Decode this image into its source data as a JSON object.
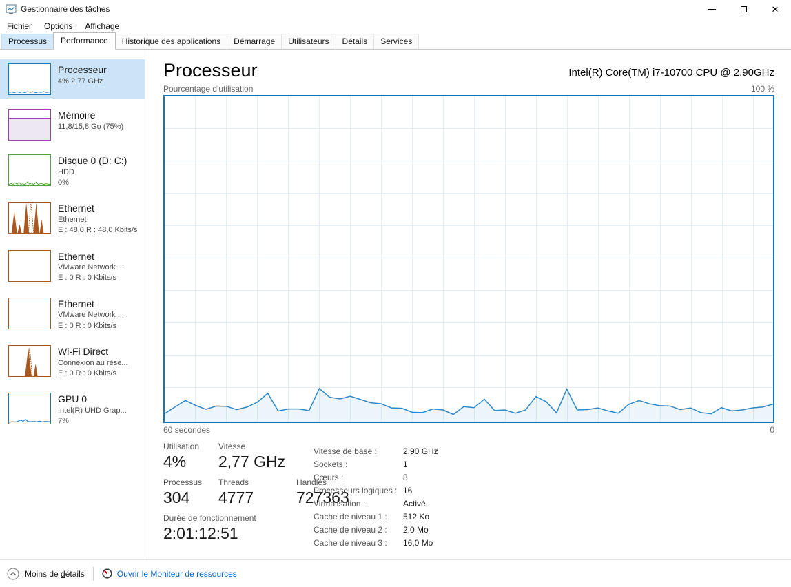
{
  "window": {
    "title": "Gestionnaire des tâches"
  },
  "menu": {
    "items": [
      {
        "label": "Fichier"
      },
      {
        "label": "Options"
      },
      {
        "label": "Affichage"
      }
    ]
  },
  "tabs": [
    {
      "label": "Processus"
    },
    {
      "label": "Performance"
    },
    {
      "label": "Historique des applications"
    },
    {
      "label": "Démarrage"
    },
    {
      "label": "Utilisateurs"
    },
    {
      "label": "Détails"
    },
    {
      "label": "Services"
    }
  ],
  "sidebar": {
    "items": [
      {
        "name": "Processeur",
        "line2": "4% 2,77 GHz",
        "line3": ""
      },
      {
        "name": "Mémoire",
        "line2": "11,8/15,8 Go (75%)",
        "line3": ""
      },
      {
        "name": "Disque 0 (D: C:)",
        "line2": "HDD",
        "line3": "0%"
      },
      {
        "name": "Ethernet",
        "line2": "Ethernet",
        "line3": "E : 48,0 R : 48,0 Kbits/s"
      },
      {
        "name": "Ethernet",
        "line2": "VMware Network ...",
        "line3": "E : 0 R : 0 Kbits/s"
      },
      {
        "name": "Ethernet",
        "line2": "VMware Network ...",
        "line3": "E : 0 R : 0 Kbits/s"
      },
      {
        "name": "Wi-Fi Direct",
        "line2": "Connexion au rése...",
        "line3": "E : 0 R : 0 Kbits/s"
      },
      {
        "name": "GPU 0",
        "line2": "Intel(R) UHD Grap...",
        "line3": "7%"
      }
    ]
  },
  "main": {
    "title": "Processeur",
    "subtitle": "Intel(R) Core(TM) i7-10700 CPU @ 2.90GHz",
    "chart_top_label": "Pourcentage d'utilisation",
    "chart_top_right": "100 %",
    "chart_bottom_left": "60 secondes",
    "chart_bottom_right": "0",
    "stats": {
      "utilisation_label": "Utilisation",
      "utilisation_value": "4%",
      "vitesse_label": "Vitesse",
      "vitesse_value": "2,77 GHz",
      "processus_label": "Processus",
      "processus_value": "304",
      "threads_label": "Threads",
      "threads_value": "4777",
      "handles_label": "Handles",
      "handles_value": "727363",
      "uptime_label": "Durée de fonctionnement",
      "uptime_value": "2:01:12:51"
    },
    "details": [
      {
        "label": "Vitesse de base :",
        "value": "2,90 GHz"
      },
      {
        "label": "Sockets :",
        "value": "1"
      },
      {
        "label": "Cœurs :",
        "value": "8"
      },
      {
        "label": "Processeurs logiques :",
        "value": "16"
      },
      {
        "label": "Virtualisation :",
        "value": "Activé"
      },
      {
        "label": "Cache de niveau 1 :",
        "value": "512 Ko"
      },
      {
        "label": "Cache de niveau 2 :",
        "value": "2,0 Mo"
      },
      {
        "label": "Cache de niveau 3 :",
        "value": "16,0 Mo"
      }
    ]
  },
  "footer": {
    "less_details": "Moins de détails",
    "open_resmon": "Ouvrir le Moniteur de ressources"
  },
  "colors": {
    "cpu_blue": "#1176bb",
    "memory_purple": "#9b42ad",
    "disk_green": "#53a045",
    "network_brown": "#a9581f",
    "selected_bg": "#cbe4f7",
    "link_blue": "#0a64c2"
  },
  "chart_data": {
    "type": "area",
    "title": "Pourcentage d'utilisation",
    "xlabel": "60 secondes",
    "ylabel": "%",
    "ylim": [
      0,
      100
    ],
    "x_range_seconds": 60,
    "grid": true,
    "legend": "none",
    "values": [
      2.5,
      4.5,
      6.5,
      5.0,
      3.8,
      4.8,
      4.7,
      3.7,
      4.5,
      6.0,
      8.7,
      3.3,
      3.9,
      3.9,
      3.4,
      10.2,
      7.5,
      7.0,
      7.8,
      6.8,
      5.8,
      5.5,
      4.2,
      4.1,
      2.9,
      2.8,
      3.9,
      3.6,
      2.2,
      4.6,
      4.3,
      6.9,
      3.4,
      3.6,
      2.6,
      3.6,
      7.7,
      6.1,
      2.7,
      10.0,
      3.6,
      3.7,
      4.2,
      3.3,
      2.6,
      5.3,
      6.5,
      5.5,
      4.9,
      4.8,
      3.7,
      4.2,
      2.8,
      2.4,
      4.3,
      3.3,
      3.6,
      4.2,
      4.5,
      5.4
    ]
  }
}
